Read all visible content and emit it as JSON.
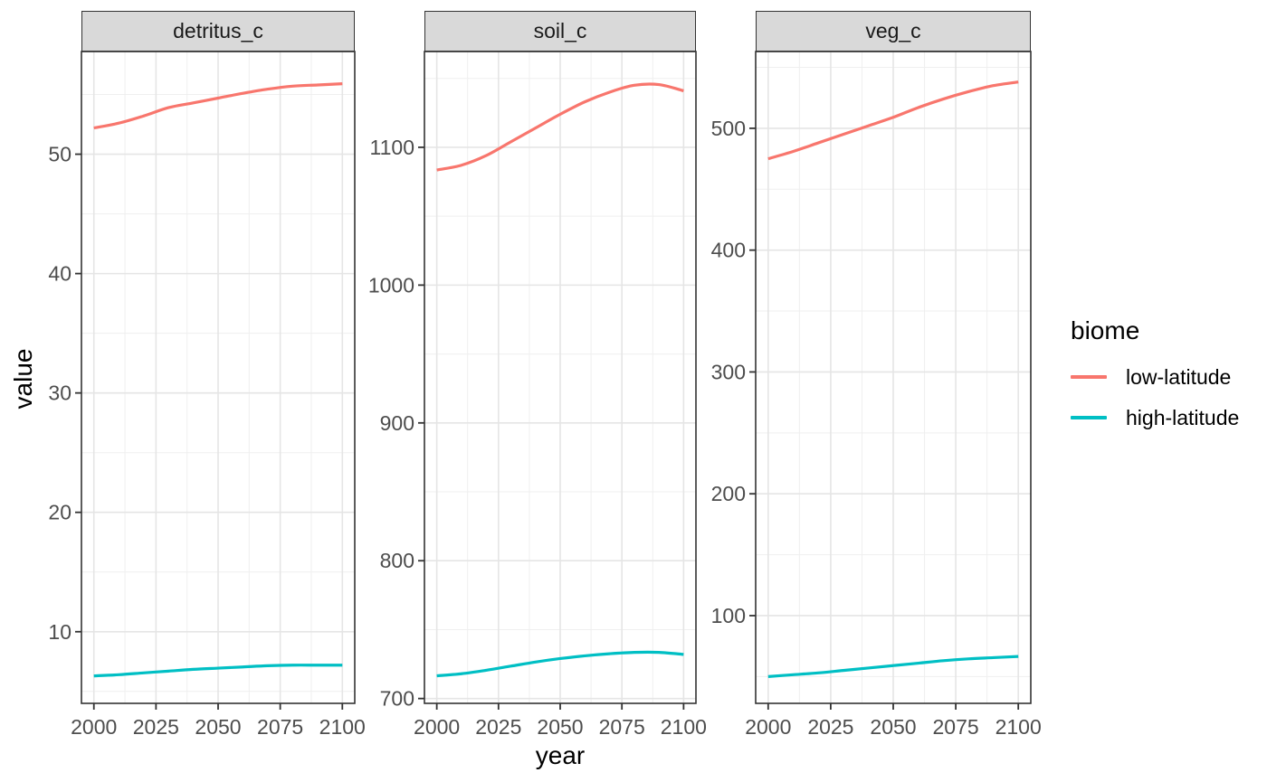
{
  "figure": {
    "background": "#ffffff"
  },
  "axis_titles": {
    "x": "year",
    "y": "value"
  },
  "legend": {
    "title": "biome",
    "entries": [
      {
        "label": "low-latitude",
        "color": "#F8766D"
      },
      {
        "label": "high-latitude",
        "color": "#00BFC4"
      }
    ]
  },
  "style": {
    "grid_major_color": "#e5e5e5",
    "grid_minor_color": "#efefef",
    "panel_border_color": "#333333",
    "tick_mark_color": "#333333",
    "tick_label_color": "#4d4d4d",
    "strip_background": "#d9d9d9",
    "line_width": 3.2
  },
  "chart_data": [
    {
      "type": "line",
      "facet": "detritus_c",
      "x": [
        2000,
        2010,
        2020,
        2030,
        2040,
        2050,
        2060,
        2070,
        2080,
        2090,
        2100
      ],
      "series": [
        {
          "name": "low-latitude",
          "color": "#F8766D",
          "values": [
            52.2,
            52.6,
            53.2,
            53.9,
            54.3,
            54.7,
            55.1,
            55.45,
            55.7,
            55.8,
            55.9
          ]
        },
        {
          "name": "high-latitude",
          "color": "#00BFC4",
          "values": [
            6.3,
            6.4,
            6.55,
            6.7,
            6.85,
            6.95,
            7.05,
            7.15,
            7.2,
            7.2,
            7.2
          ]
        }
      ],
      "xlim": [
        1995,
        2105
      ],
      "ylim": [
        4.0,
        58.6
      ],
      "xticks": [
        2000,
        2025,
        2050,
        2075,
        2100
      ],
      "yticks": [
        10,
        20,
        30,
        40,
        50
      ],
      "xminor": [
        2012.5,
        2037.5,
        2062.5,
        2087.5
      ],
      "yminor": [
        5,
        15,
        25,
        35,
        45,
        55
      ],
      "grid": true
    },
    {
      "type": "line",
      "facet": "soil_c",
      "x": [
        2000,
        2010,
        2020,
        2030,
        2040,
        2050,
        2060,
        2070,
        2080,
        2090,
        2100
      ],
      "series": [
        {
          "name": "low-latitude",
          "color": "#F8766D",
          "values": [
            1083.5,
            1087,
            1094,
            1104,
            1114,
            1124,
            1133,
            1140,
            1145,
            1145.5,
            1141
          ]
        },
        {
          "name": "high-latitude",
          "color": "#00BFC4",
          "values": [
            716.5,
            718,
            720.5,
            723.5,
            726.5,
            729,
            731,
            732.5,
            733.5,
            733.5,
            732
          ]
        }
      ],
      "xlim": [
        1995,
        2105
      ],
      "ylim": [
        696.5,
        1169.5
      ],
      "xticks": [
        2000,
        2025,
        2050,
        2075,
        2100
      ],
      "yticks": [
        700,
        800,
        900,
        1000,
        1100
      ],
      "xminor": [
        2012.5,
        2037.5,
        2062.5,
        2087.5
      ],
      "yminor": [
        750,
        850,
        950,
        1050,
        1150
      ],
      "grid": true
    },
    {
      "type": "line",
      "facet": "veg_c",
      "x": [
        2000,
        2010,
        2020,
        2030,
        2040,
        2050,
        2060,
        2070,
        2080,
        2090,
        2100
      ],
      "series": [
        {
          "name": "low-latitude",
          "color": "#F8766D",
          "values": [
            475,
            481,
            488,
            495,
            502,
            509,
            517,
            524,
            530,
            535,
            538
          ]
        },
        {
          "name": "high-latitude",
          "color": "#00BFC4",
          "values": [
            50,
            51.5,
            53,
            55,
            57,
            59,
            61,
            63,
            64.5,
            65.5,
            66.5
          ]
        }
      ],
      "xlim": [
        1995,
        2105
      ],
      "ylim": [
        28,
        563
      ],
      "xticks": [
        2000,
        2025,
        2050,
        2075,
        2100
      ],
      "yticks": [
        100,
        200,
        300,
        400,
        500
      ],
      "xminor": [
        2012.5,
        2037.5,
        2062.5,
        2087.5
      ],
      "yminor": [
        50,
        150,
        250,
        350,
        450,
        550
      ],
      "grid": true
    }
  ]
}
